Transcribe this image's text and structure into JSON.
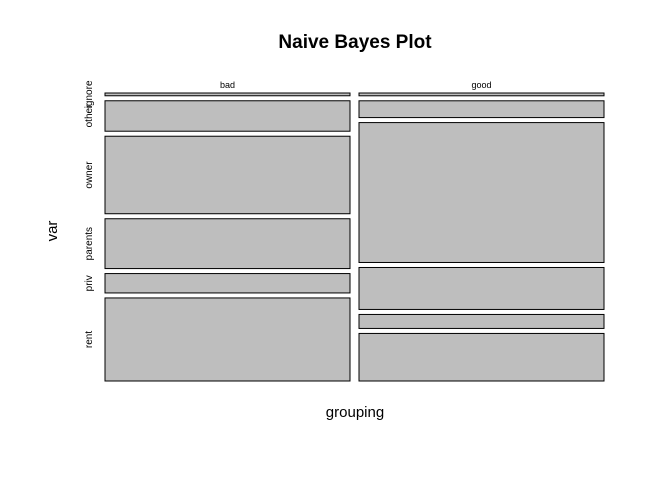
{
  "chart_data": {
    "type": "mosaic",
    "title": "Naive Bayes Plot",
    "xlabel": "grouping",
    "ylabel": "var",
    "columns": [
      {
        "name": "bad",
        "cells": [
          {
            "level": "ignore",
            "proportion": 0.01
          },
          {
            "level": "other",
            "proportion": 0.11
          },
          {
            "level": "owner",
            "proportion": 0.28
          },
          {
            "level": "parents",
            "proportion": 0.18
          },
          {
            "level": "priv",
            "proportion": 0.07
          },
          {
            "level": "rent",
            "proportion": 0.3
          }
        ]
      },
      {
        "name": "good",
        "cells": [
          {
            "level": "ignore",
            "proportion": 0.01
          },
          {
            "level": "other",
            "proportion": 0.06
          },
          {
            "level": "owner",
            "proportion": 0.5
          },
          {
            "level": "parents",
            "proportion": 0.15
          },
          {
            "level": "priv",
            "proportion": 0.05
          },
          {
            "level": "rent",
            "proportion": 0.17
          }
        ]
      }
    ],
    "row_labels": [
      "ignore",
      "other",
      "owner",
      "parents",
      "priv",
      "rent"
    ],
    "colors": {
      "fill": "#bebebe",
      "stroke": "#000000",
      "background": "#ffffff"
    }
  }
}
